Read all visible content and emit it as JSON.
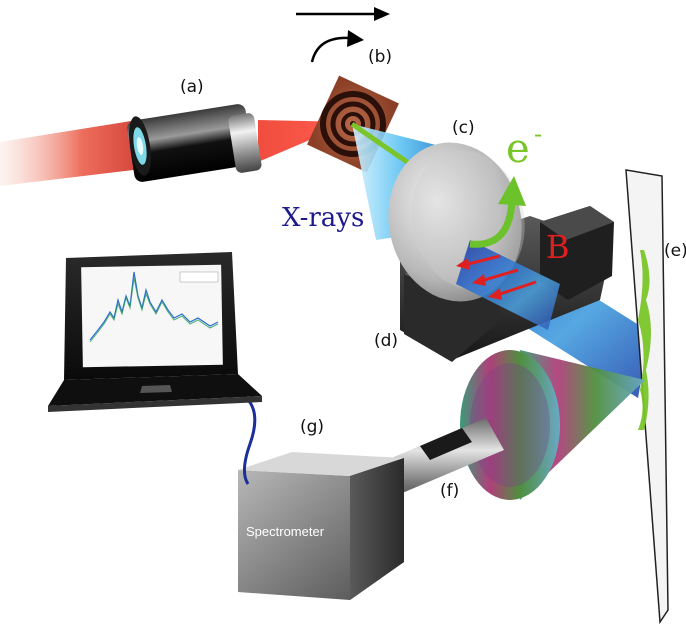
{
  "labels": {
    "a": "(a)",
    "b": "(b)",
    "c": "(c)",
    "d": "(d)",
    "e": "(e)",
    "f": "(f)",
    "g": "(g)"
  },
  "xrays": "X-rays",
  "electron": "e",
  "electron_sup": "-",
  "bfield": "B",
  "spectrometer": "Spectrometer",
  "colors": {
    "laser": "#e8402a",
    "xray": "#2b8fd6",
    "xray_text": "#1d1a8c",
    "electron": "#6cc22b",
    "bfield": "#e02020",
    "screen_signal": "#7ac52a"
  }
}
